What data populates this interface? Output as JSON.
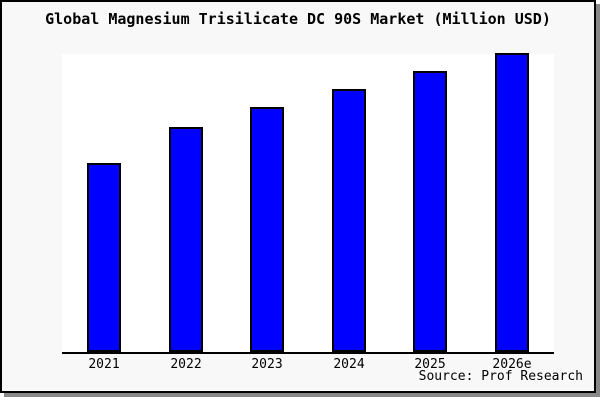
{
  "title": "Global Magnesium Trisilicate DC 90S Market (Million USD)",
  "source_text": "Source: Prof Research",
  "colors": {
    "bar_fill": "#0000ff",
    "bar_border": "#000000",
    "chart_bg": "#f8f8f8",
    "plot_bg": "#ffffff",
    "axis": "#000000",
    "shadow": "#888888"
  },
  "chart_data": {
    "type": "bar",
    "title": "Global Magnesium Trisilicate DC 90S Market (Million USD)",
    "categories": [
      "2021",
      "2022",
      "2023",
      "2024",
      "2025",
      "2026e"
    ],
    "values": [
      63,
      75,
      82,
      88,
      94,
      100
    ],
    "units": "Million USD",
    "series_color": "#0000ff",
    "xlabel": "",
    "ylabel": "",
    "y_axis_visible": false,
    "grid": false,
    "legend": false,
    "annotation": "Source: Prof Research"
  }
}
